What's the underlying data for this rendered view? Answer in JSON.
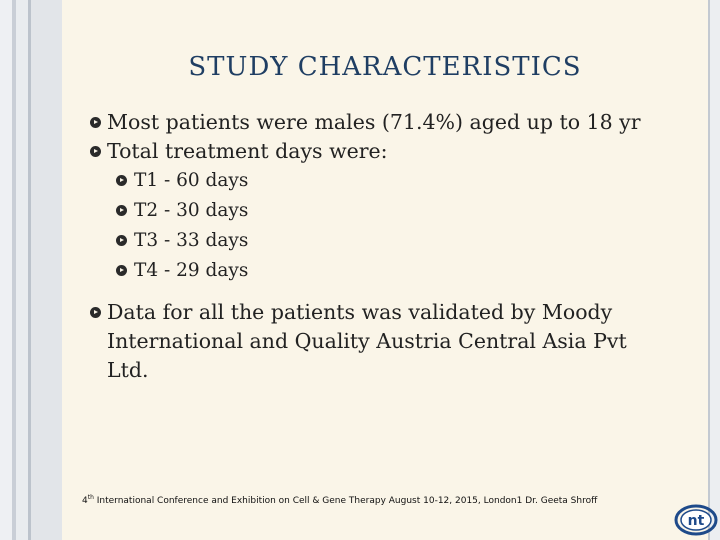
{
  "title": "STUDY CHARACTERISTICS",
  "bullets": [
    "Most patients were males (71.4%) aged up to 18 yr",
    "Total treatment days were:",
    "Data for all the patients was validated by Moody International and Quality Austria Central Asia Pvt Ltd."
  ],
  "sub_bullets": [
    "T1 - 60 days",
    "T2 - 30 days",
    "T3 - 33 days",
    "T4 - 29 days"
  ],
  "footer": {
    "ordinal": "4",
    "ordinal_suffix": "th",
    "text": " International Conference and Exhibition on Cell & Gene Therapy August 10-12, 2015, London1 Dr. Geeta Shroff"
  },
  "logo_text": "nt",
  "colors": {
    "title": "#1f3e63",
    "slide_bg": "#faf5e8",
    "logo": "#1e4a8a"
  }
}
